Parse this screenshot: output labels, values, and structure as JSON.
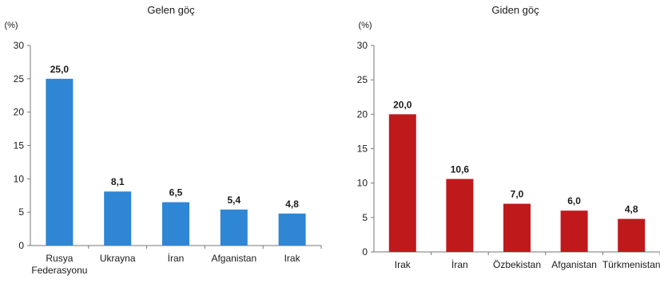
{
  "chart_data": [
    {
      "type": "bar",
      "title": "Gelen göç",
      "unit_label": "(%)",
      "categories": [
        [
          "Rusya",
          "Federasyonu"
        ],
        [
          "Ukrayna"
        ],
        [
          "İran"
        ],
        [
          "Afganistan"
        ],
        [
          "Irak"
        ]
      ],
      "values": [
        25.0,
        8.1,
        6.5,
        5.4,
        4.8
      ],
      "value_labels": [
        "25,0",
        "8,1",
        "6,5",
        "5,4",
        "4,8"
      ],
      "yticks": [
        0,
        5,
        10,
        15,
        20,
        25,
        30
      ],
      "ylim": [
        0,
        30
      ],
      "bar_color": "#2e86d4",
      "grid": false,
      "legend": "none"
    },
    {
      "type": "bar",
      "title": "Giden göç",
      "unit_label": "(%)",
      "categories": [
        [
          "Irak"
        ],
        [
          "İran"
        ],
        [
          "Özbekistan"
        ],
        [
          "Afganistan"
        ],
        [
          "Türkmenistan"
        ]
      ],
      "values": [
        20.0,
        10.6,
        7.0,
        6.0,
        4.8
      ],
      "value_labels": [
        "20,0",
        "10,6",
        "7,0",
        "6,0",
        "4,8"
      ],
      "yticks": [
        0,
        5,
        10,
        15,
        20,
        25,
        30
      ],
      "ylim": [
        0,
        30
      ],
      "bar_color": "#c0191c",
      "grid": false,
      "legend": "none"
    }
  ]
}
